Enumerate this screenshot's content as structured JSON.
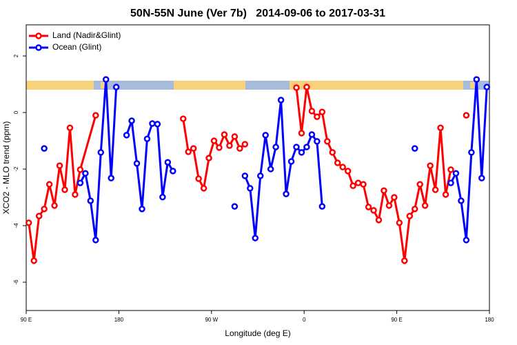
{
  "chart_data": {
    "type": "line",
    "title": "50N-55N June (Ver 7b)   2014-09-06 to 2017-03-31",
    "x_label": "Longitude (deg E)",
    "y_label": "XCO2 - MLO trend (ppm)",
    "xlim": [
      90,
      540
    ],
    "ylim": [
      -7,
      3.1
    ],
    "xticks": [
      {
        "value": 90,
        "label": "90 E"
      },
      180,
      {
        "value": 270,
        "label": "90 W"
      },
      {
        "value": 360,
        "label": "0"
      },
      {
        "value": 450,
        "label": "90 E"
      },
      {
        "value": 540,
        "label": "180"
      }
    ],
    "yticks": [
      -6,
      -4,
      -2,
      0,
      2
    ],
    "legend": "top-left",
    "series": [
      {
        "name": "Land (Nadir&Glint)",
        "color": "#ff0000",
        "x": [
          92.5,
          97.5,
          102.5,
          107.5,
          112.5,
          117.5,
          122.5,
          127.5,
          132.5,
          137.5,
          142.5,
          157.5,
          162.5,
          242.5,
          247.5,
          252.5,
          257.5,
          262.5,
          267.5,
          272.5,
          277.5,
          282.5,
          287.5,
          292.5,
          297.5,
          302.5,
          307.5,
          352.5,
          357.5,
          362.5,
          367.5,
          372.5,
          377.5,
          382.5,
          387.5,
          392.5,
          397.5,
          402.5,
          407.5,
          412.5,
          417.5,
          422.5,
          427.5,
          432.5,
          437.5,
          442.5,
          447.5,
          452.5,
          457.5,
          462.5,
          467.5,
          472.5,
          477.5,
          482.5,
          487.5,
          492.5,
          497.5,
          502.5,
          507.5,
          517.5
        ],
        "values": [
          -3.9,
          -5.24,
          -3.66,
          -3.41,
          -2.54,
          -3.29,
          -1.88,
          -2.73,
          -0.54,
          -2.9,
          -2.02,
          -0.1,
          null,
          -0.22,
          -1.39,
          -1.27,
          -2.34,
          -2.68,
          -1.61,
          -1.0,
          -1.24,
          -0.78,
          -1.17,
          -0.85,
          -1.27,
          -1.12,
          null,
          0.88,
          -0.73,
          0.9,
          0.05,
          -0.15,
          0.02,
          -1.02,
          -1.41,
          -1.78,
          -1.93,
          -2.07,
          -2.59,
          -2.49,
          -2.54,
          -3.34,
          -3.46,
          -3.8,
          -2.76,
          -3.29,
          -3.0,
          -3.9,
          -5.24,
          -3.66,
          -3.41,
          -2.54,
          -3.29,
          -1.88,
          -2.73,
          -0.54,
          -2.9,
          -2.02,
          null,
          -0.1
        ]
      },
      {
        "name": "Ocean (Glint)",
        "color": "#0000ff",
        "x": [
          107.5,
          112.5,
          142.5,
          147.5,
          152.5,
          157.5,
          162.5,
          167.5,
          172.5,
          177.5,
          182.5,
          187.5,
          192.5,
          197.5,
          202.5,
          207.5,
          212.5,
          217.5,
          222.5,
          227.5,
          232.5,
          237.5,
          292.5,
          297.5,
          302.5,
          307.5,
          312.5,
          317.5,
          322.5,
          327.5,
          332.5,
          337.5,
          342.5,
          347.5,
          352.5,
          357.5,
          362.5,
          367.5,
          372.5,
          377.5,
          382.5,
          467.5,
          472.5,
          502.5,
          507.5,
          512.5,
          517.5,
          522.5,
          527.5,
          532.5,
          537.5
        ],
        "values": [
          -1.27,
          null,
          -2.49,
          -2.15,
          -3.12,
          -4.51,
          -1.41,
          1.17,
          -2.32,
          0.9,
          null,
          -0.8,
          -0.29,
          -1.8,
          -3.41,
          -0.93,
          -0.39,
          -0.41,
          -2.99,
          -1.76,
          -2.07,
          null,
          -3.32,
          null,
          -2.24,
          -2.68,
          -4.44,
          -2.24,
          -0.8,
          -2.0,
          -1.22,
          0.44,
          -2.88,
          -1.73,
          -1.22,
          -1.41,
          -1.22,
          -0.78,
          -1.02,
          -3.32,
          null,
          -1.27,
          null,
          -2.49,
          -2.15,
          -3.12,
          -4.51,
          -1.41,
          1.17,
          -2.32,
          0.9
        ]
      }
    ]
  }
}
